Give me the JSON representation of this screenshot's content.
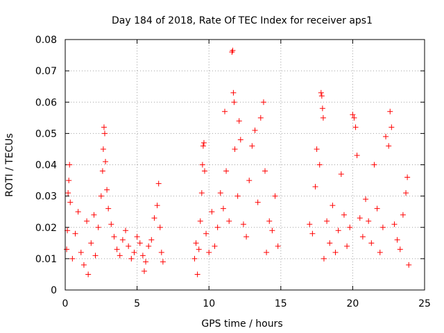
{
  "chart_data": {
    "type": "scatter",
    "title": "Day 184 of 2018, Rate Of TEC Index for receiver aps1",
    "xlabel": "GPS time / hours",
    "ylabel": "ROTI / TECUs",
    "xlim": [
      0,
      25
    ],
    "ylim": [
      0,
      0.08
    ],
    "xticks": [
      {
        "v": 0,
        "label": "0"
      },
      {
        "v": 5,
        "label": "5"
      },
      {
        "v": 10,
        "label": "10"
      },
      {
        "v": 15,
        "label": "15"
      },
      {
        "v": 20,
        "label": "20"
      },
      {
        "v": 25,
        "label": "25"
      }
    ],
    "yticks": [
      {
        "v": 0,
        "label": "0"
      },
      {
        "v": 0.01,
        "label": "0.01"
      },
      {
        "v": 0.02,
        "label": "0.02"
      },
      {
        "v": 0.03,
        "label": "0.03"
      },
      {
        "v": 0.04,
        "label": "0.04"
      },
      {
        "v": 0.05,
        "label": "0.05"
      },
      {
        "v": 0.06,
        "label": "0.06"
      },
      {
        "v": 0.07,
        "label": "0.07"
      },
      {
        "v": 0.08,
        "label": "0.08"
      }
    ],
    "grid": true,
    "marker": "+",
    "color": "#ff0000",
    "series": [
      {
        "name": "aps1",
        "points": [
          [
            0.1,
            0.013
          ],
          [
            0.15,
            0.019
          ],
          [
            0.2,
            0.031
          ],
          [
            0.25,
            0.035
          ],
          [
            0.3,
            0.04
          ],
          [
            0.35,
            0.028
          ],
          [
            0.5,
            0.01
          ],
          [
            0.7,
            0.018
          ],
          [
            0.9,
            0.025
          ],
          [
            1.1,
            0.012
          ],
          [
            1.3,
            0.008
          ],
          [
            1.5,
            0.022
          ],
          [
            1.6,
            0.005
          ],
          [
            1.8,
            0.015
          ],
          [
            2.0,
            0.024
          ],
          [
            2.1,
            0.011
          ],
          [
            2.3,
            0.02
          ],
          [
            2.5,
            0.03
          ],
          [
            2.6,
            0.038
          ],
          [
            2.65,
            0.045
          ],
          [
            2.7,
            0.052
          ],
          [
            2.75,
            0.05
          ],
          [
            2.8,
            0.041
          ],
          [
            2.9,
            0.032
          ],
          [
            3.0,
            0.026
          ],
          [
            3.2,
            0.021
          ],
          [
            3.4,
            0.017
          ],
          [
            3.6,
            0.013
          ],
          [
            3.8,
            0.011
          ],
          [
            4.0,
            0.016
          ],
          [
            4.2,
            0.019
          ],
          [
            4.4,
            0.014
          ],
          [
            4.6,
            0.01
          ],
          [
            4.8,
            0.012
          ],
          [
            5.0,
            0.017
          ],
          [
            5.2,
            0.015
          ],
          [
            5.4,
            0.011
          ],
          [
            5.5,
            0.006
          ],
          [
            5.6,
            0.009
          ],
          [
            5.8,
            0.014
          ],
          [
            6.0,
            0.016
          ],
          [
            6.2,
            0.023
          ],
          [
            6.4,
            0.027
          ],
          [
            6.5,
            0.034
          ],
          [
            6.6,
            0.02
          ],
          [
            6.7,
            0.012
          ],
          [
            6.8,
            0.009
          ],
          [
            9.0,
            0.01
          ],
          [
            9.1,
            0.015
          ],
          [
            9.2,
            0.005
          ],
          [
            9.3,
            0.013
          ],
          [
            9.4,
            0.022
          ],
          [
            9.5,
            0.031
          ],
          [
            9.55,
            0.04
          ],
          [
            9.6,
            0.046
          ],
          [
            9.65,
            0.047
          ],
          [
            9.7,
            0.038
          ],
          [
            9.8,
            0.018
          ],
          [
            10.0,
            0.012
          ],
          [
            10.2,
            0.025
          ],
          [
            10.4,
            0.014
          ],
          [
            10.6,
            0.02
          ],
          [
            10.8,
            0.031
          ],
          [
            11.0,
            0.026
          ],
          [
            11.1,
            0.057
          ],
          [
            11.2,
            0.038
          ],
          [
            11.4,
            0.022
          ],
          [
            11.6,
            0.076
          ],
          [
            11.65,
            0.0765
          ],
          [
            11.7,
            0.063
          ],
          [
            11.75,
            0.06
          ],
          [
            11.8,
            0.045
          ],
          [
            12.0,
            0.03
          ],
          [
            12.1,
            0.054
          ],
          [
            12.2,
            0.048
          ],
          [
            12.4,
            0.021
          ],
          [
            12.6,
            0.017
          ],
          [
            12.8,
            0.035
          ],
          [
            13.0,
            0.046
          ],
          [
            13.2,
            0.051
          ],
          [
            13.4,
            0.028
          ],
          [
            13.6,
            0.055
          ],
          [
            13.8,
            0.06
          ],
          [
            13.9,
            0.038
          ],
          [
            14.0,
            0.012
          ],
          [
            14.2,
            0.022
          ],
          [
            14.4,
            0.019
          ],
          [
            14.6,
            0.03
          ],
          [
            14.8,
            0.014
          ],
          [
            17.0,
            0.021
          ],
          [
            17.2,
            0.018
          ],
          [
            17.4,
            0.033
          ],
          [
            17.5,
            0.045
          ],
          [
            17.7,
            0.04
          ],
          [
            17.8,
            0.063
          ],
          [
            17.85,
            0.062
          ],
          [
            17.9,
            0.058
          ],
          [
            17.95,
            0.055
          ],
          [
            18.0,
            0.01
          ],
          [
            18.2,
            0.022
          ],
          [
            18.4,
            0.015
          ],
          [
            18.6,
            0.027
          ],
          [
            18.8,
            0.012
          ],
          [
            19.0,
            0.019
          ],
          [
            19.2,
            0.037
          ],
          [
            19.4,
            0.024
          ],
          [
            19.6,
            0.014
          ],
          [
            19.8,
            0.02
          ],
          [
            20.0,
            0.056
          ],
          [
            20.1,
            0.055
          ],
          [
            20.2,
            0.052
          ],
          [
            20.3,
            0.043
          ],
          [
            20.5,
            0.023
          ],
          [
            20.7,
            0.017
          ],
          [
            20.9,
            0.029
          ],
          [
            21.1,
            0.022
          ],
          [
            21.3,
            0.015
          ],
          [
            21.5,
            0.04
          ],
          [
            21.7,
            0.026
          ],
          [
            21.9,
            0.012
          ],
          [
            22.1,
            0.02
          ],
          [
            22.3,
            0.049
          ],
          [
            22.5,
            0.046
          ],
          [
            22.6,
            0.057
          ],
          [
            22.7,
            0.052
          ],
          [
            22.9,
            0.021
          ],
          [
            23.1,
            0.016
          ],
          [
            23.3,
            0.013
          ],
          [
            23.5,
            0.024
          ],
          [
            23.7,
            0.031
          ],
          [
            23.8,
            0.036
          ],
          [
            23.9,
            0.008
          ]
        ]
      }
    ]
  }
}
